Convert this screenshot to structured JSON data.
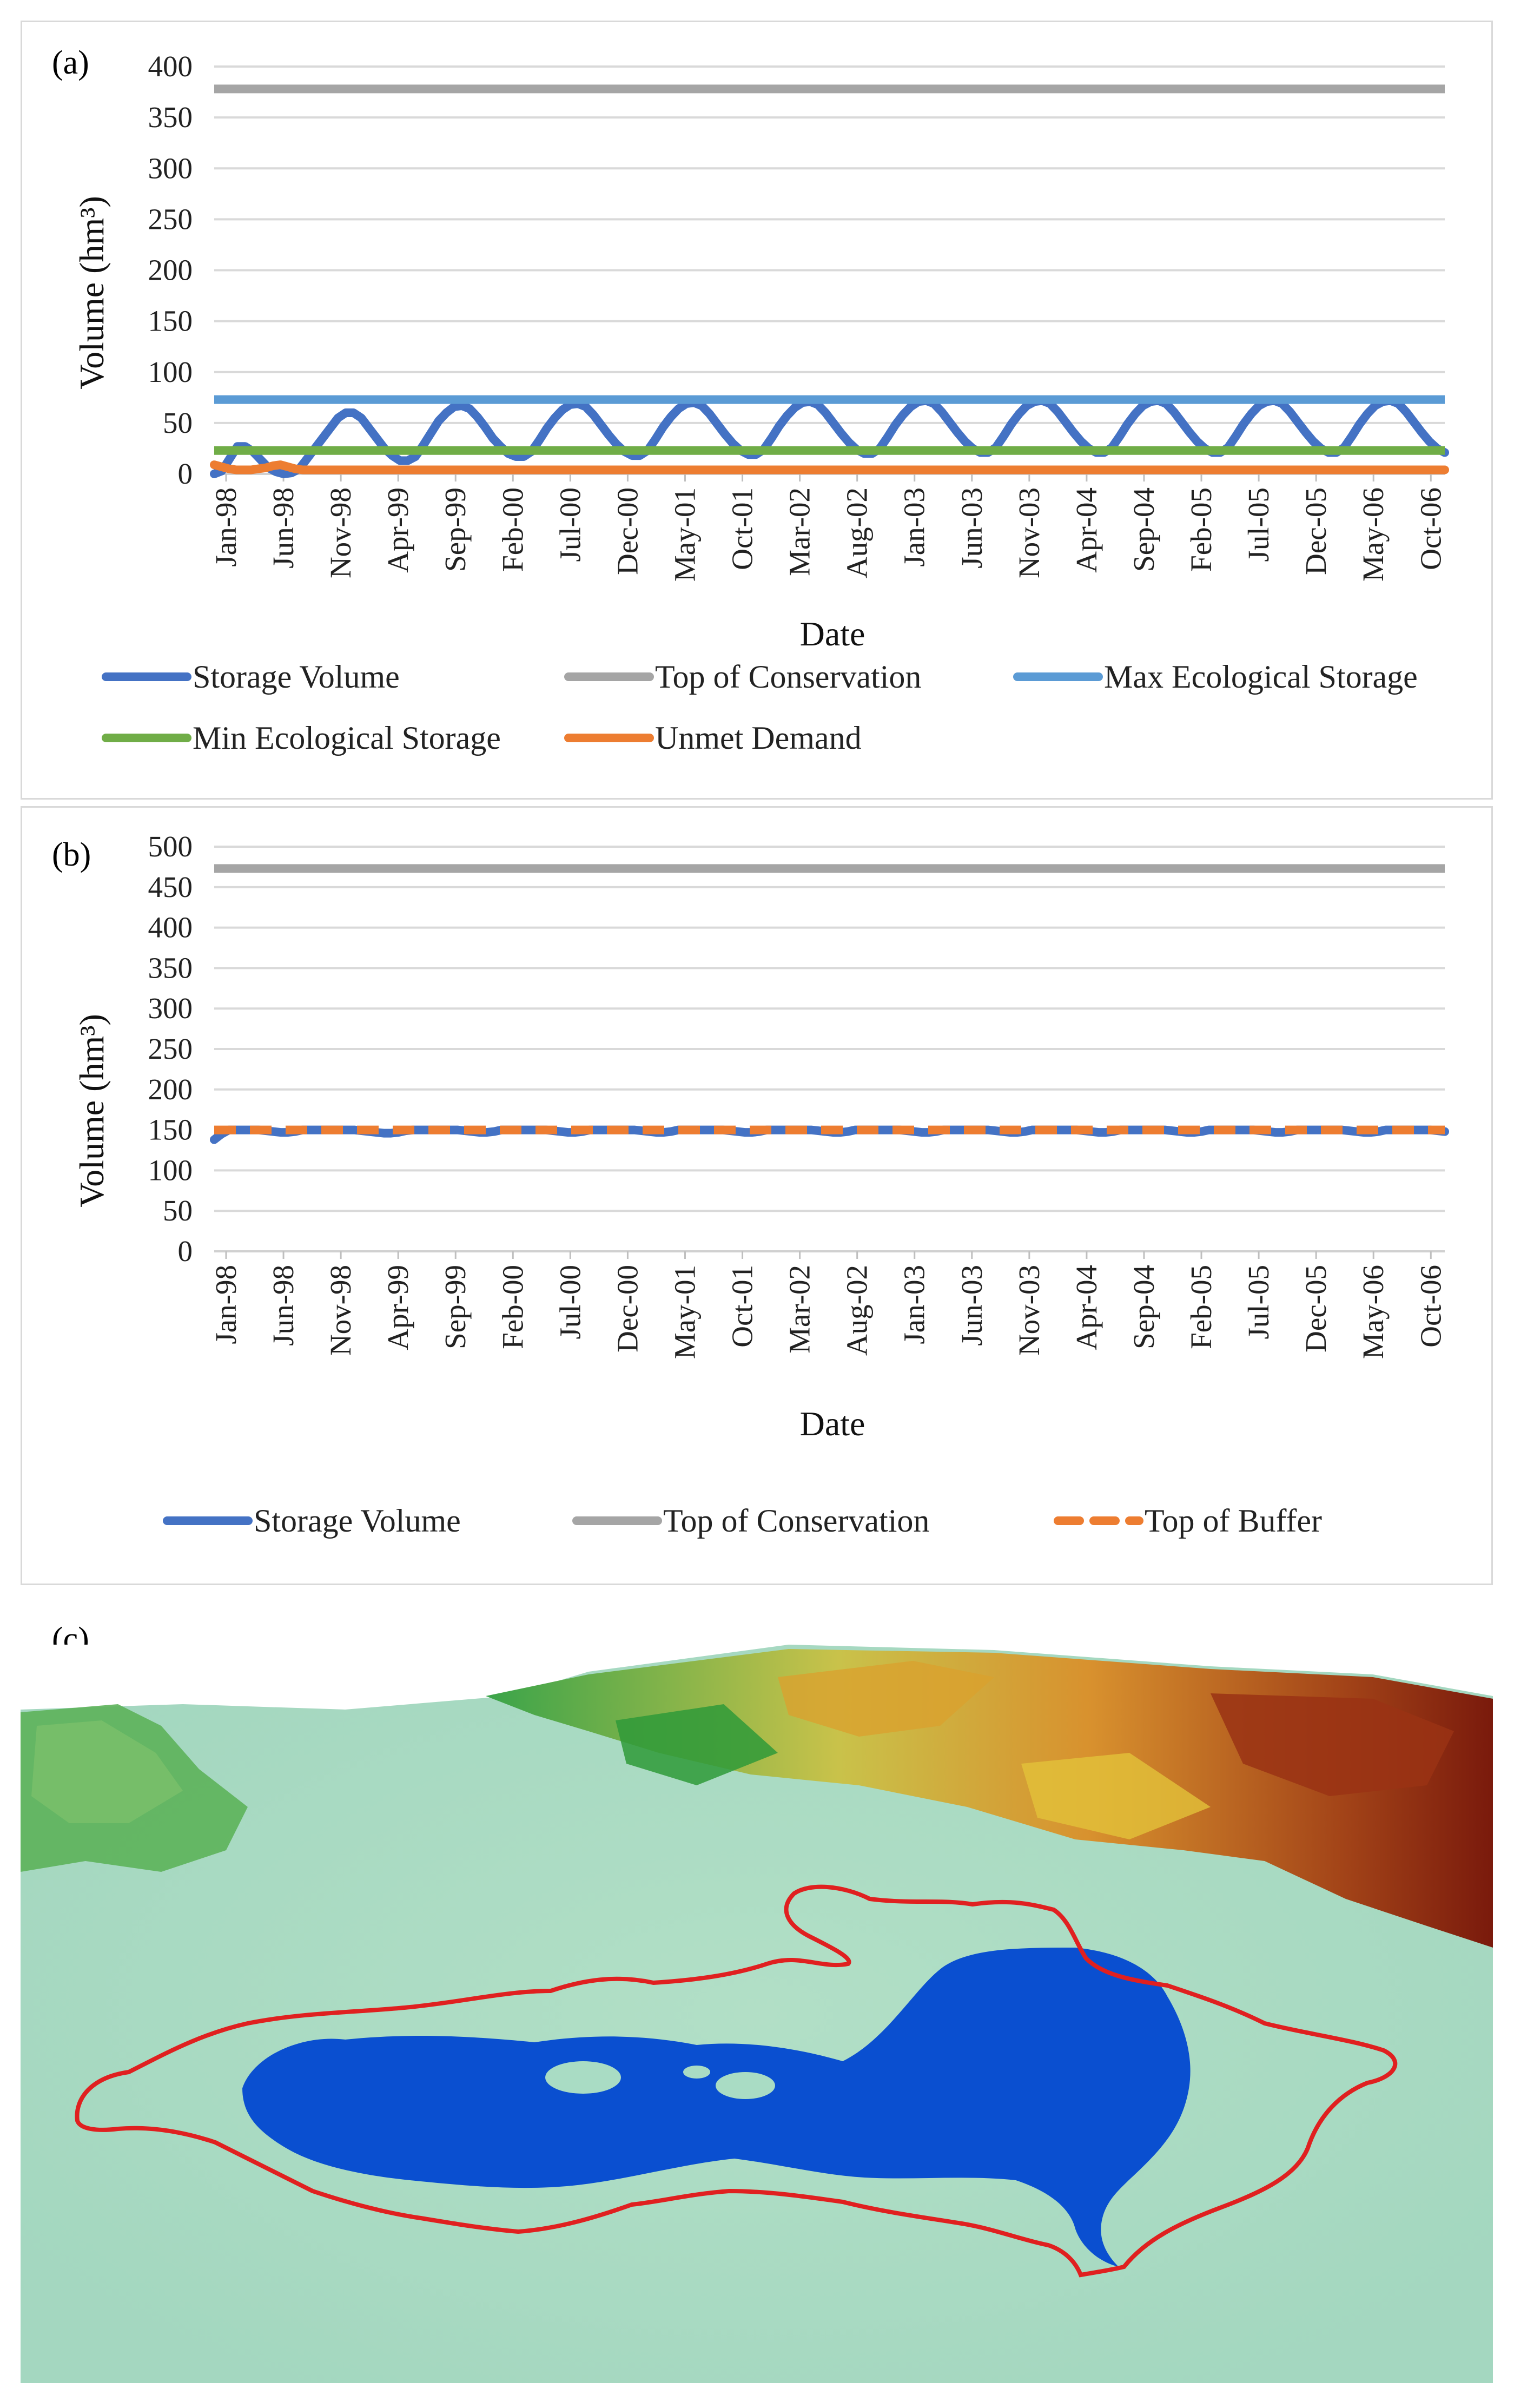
{
  "panels": {
    "a": {
      "label": "(a)"
    },
    "b": {
      "label": "(b)"
    },
    "c": {
      "label": "(c)"
    }
  },
  "chart_data": [
    {
      "id": "a",
      "type": "line",
      "xlabel": "Date",
      "ylabel": "Volume (hm³)",
      "ylim": [
        0,
        400
      ],
      "yticks": [
        0,
        50,
        100,
        150,
        200,
        250,
        300,
        350,
        400
      ],
      "grid": true,
      "legend_position": "bottom",
      "x_tick_labels": [
        "Jan-98",
        "Jun-98",
        "Nov-98",
        "Apr-99",
        "Sep-99",
        "Feb-00",
        "Jul-00",
        "Dec-00",
        "May-01",
        "Oct-01",
        "Mar-02",
        "Aug-02",
        "Jan-03",
        "Jun-03",
        "Nov-03",
        "Apr-04",
        "Sep-04",
        "Feb-05",
        "Jul-05",
        "Dec-05",
        "May-06",
        "Oct-06"
      ],
      "series": [
        {
          "name": "Storage Volume",
          "color": "#4472c4",
          "style": "solid",
          "values": [
            0,
            3,
            15,
            27,
            27,
            22,
            14,
            6,
            2,
            0,
            1,
            5,
            15,
            25,
            35,
            45,
            55,
            60,
            60,
            55,
            45,
            35,
            25,
            18,
            13,
            13,
            17,
            28,
            40,
            52,
            60,
            66,
            67,
            64,
            56,
            46,
            35,
            27,
            20,
            17,
            17,
            22,
            33,
            45,
            55,
            63,
            68,
            69,
            66,
            58,
            48,
            38,
            29,
            22,
            18,
            18,
            23,
            34,
            46,
            56,
            64,
            69,
            70,
            67,
            59,
            49,
            39,
            30,
            23,
            19,
            19,
            24,
            35,
            47,
            57,
            65,
            70,
            71,
            68,
            60,
            50,
            40,
            31,
            24,
            20,
            20,
            25,
            36,
            48,
            58,
            66,
            71,
            72,
            69,
            61,
            51,
            41,
            32,
            25,
            21,
            21,
            26,
            37,
            49,
            59,
            67,
            71,
            72,
            69,
            61,
            51,
            41,
            32,
            25,
            21,
            21,
            26,
            37,
            49,
            59,
            67,
            71,
            72,
            69,
            61,
            51,
            41,
            32,
            25,
            21,
            21,
            26,
            37,
            49,
            59,
            67,
            71,
            72,
            69,
            61,
            51,
            41,
            32,
            25,
            21,
            21,
            26,
            37,
            49,
            59,
            67,
            71,
            72,
            69,
            61,
            51,
            41,
            32,
            25,
            21
          ]
        },
        {
          "name": "Top of Conservation",
          "color": "#a5a5a5",
          "style": "solid",
          "values": [
            378
          ]
        },
        {
          "name": "Max Ecological Storage",
          "color": "#5b9bd5",
          "style": "solid",
          "values": [
            73
          ]
        },
        {
          "name": "Min Ecological Storage",
          "color": "#70ad47",
          "style": "solid",
          "values": [
            23
          ]
        },
        {
          "name": "Unmet Demand",
          "color": "#ed7d31",
          "style": "solid",
          "values": [
            9,
            7,
            5,
            4,
            4,
            4,
            5,
            6,
            8,
            9,
            7,
            5,
            4,
            4,
            4,
            4,
            4,
            4,
            4,
            4,
            4,
            4,
            4,
            4,
            4,
            4,
            4,
            4,
            4,
            4,
            4,
            4,
            4,
            4,
            4,
            4,
            4,
            4,
            4,
            4,
            4,
            4,
            4,
            4,
            4,
            4,
            4,
            4,
            4,
            4,
            4,
            4,
            4,
            4,
            4,
            4,
            4,
            4,
            4,
            4,
            4,
            4,
            4,
            4,
            4,
            4,
            4,
            4,
            4,
            4,
            4,
            4,
            4,
            4,
            4,
            4,
            4,
            4,
            4,
            4,
            4,
            4,
            4,
            4,
            4,
            4,
            4,
            4,
            4,
            4,
            4,
            4,
            4,
            4,
            4,
            4,
            4,
            4,
            4,
            4,
            4,
            4,
            4,
            4,
            4,
            4,
            4,
            4,
            4,
            4,
            4,
            4,
            4,
            4,
            4,
            4,
            4,
            4,
            4,
            4,
            4,
            4,
            4,
            4,
            4,
            4,
            4,
            4,
            4,
            4,
            4,
            4,
            4,
            4,
            4,
            4,
            4,
            4,
            4,
            4,
            4,
            4,
            4,
            4,
            4,
            4,
            4,
            4,
            4,
            4,
            4,
            4,
            4,
            4,
            4,
            4,
            4,
            4,
            4,
            4,
            4,
            4,
            4,
            4,
            4,
            4,
            4,
            4
          ]
        }
      ]
    },
    {
      "id": "b",
      "type": "line",
      "xlabel": "Date",
      "ylabel": "Volume (hm³)",
      "ylim": [
        0,
        500
      ],
      "yticks": [
        0,
        50,
        100,
        150,
        200,
        250,
        300,
        350,
        400,
        450,
        500
      ],
      "grid": true,
      "legend_position": "bottom",
      "x_tick_labels": [
        "Jan-98",
        "Jun-98",
        "Nov-98",
        "Apr-99",
        "Sep-99",
        "Feb-00",
        "Jul-00",
        "Dec-00",
        "May-01",
        "Oct-01",
        "Mar-02",
        "Aug-02",
        "Jan-03",
        "Jun-03",
        "Nov-03",
        "Apr-04",
        "Sep-04",
        "Feb-05",
        "Jul-05",
        "Dec-05",
        "May-06",
        "Oct-06"
      ],
      "series": [
        {
          "name": "Storage Volume",
          "color": "#4472c4",
          "style": "solid",
          "values": [
            138,
            145,
            150,
            150,
            150,
            150,
            150,
            149,
            148,
            147,
            147,
            148,
            150,
            150,
            150,
            150,
            150,
            150,
            150,
            150,
            149,
            148,
            147,
            146,
            146,
            147,
            149,
            150,
            150,
            150,
            150,
            150,
            150,
            150,
            149,
            148,
            147,
            147,
            148,
            150,
            150,
            150,
            150,
            150,
            150,
            150,
            149,
            148,
            147,
            147,
            148,
            150,
            150,
            150,
            150,
            150,
            150,
            150,
            149,
            148,
            147,
            147,
            148,
            150,
            150,
            150,
            150,
            150,
            150,
            150,
            149,
            148,
            147,
            147,
            148,
            150,
            150,
            150,
            150,
            150,
            150,
            150,
            149,
            148,
            147,
            147,
            148,
            150,
            150,
            150,
            150,
            150,
            150,
            150,
            149,
            148,
            147,
            147,
            148,
            150,
            150,
            150,
            150,
            150,
            150,
            150,
            149,
            148,
            147,
            147,
            148,
            150,
            150,
            150,
            150,
            150,
            150,
            150,
            149,
            148,
            147,
            147,
            148,
            150,
            150,
            150,
            150,
            150,
            150,
            150,
            149,
            148,
            147,
            147,
            148,
            150,
            150,
            150,
            150,
            150,
            150,
            150,
            149,
            148,
            147,
            147,
            148,
            150,
            150,
            150,
            150,
            150,
            150,
            150,
            149,
            148,
            147,
            147,
            148,
            150,
            150,
            150,
            150,
            150,
            150,
            150,
            149,
            148
          ]
        },
        {
          "name": "Top of Conservation",
          "color": "#a5a5a5",
          "style": "solid",
          "values": [
            473
          ]
        },
        {
          "name": "Top of Buffer",
          "color": "#ed7d31",
          "style": "dashed",
          "values": [
            150
          ]
        }
      ]
    }
  ],
  "map": {
    "colors": {
      "lowland": "#a9dcc4",
      "reservoir": "#0a4fd0",
      "boundary": "#e02020",
      "highland_green": "#2f9a38",
      "highland_yellow": "#e2c23a",
      "highland_orange": "#d07a20",
      "highland_red": "#8a1e10"
    }
  }
}
